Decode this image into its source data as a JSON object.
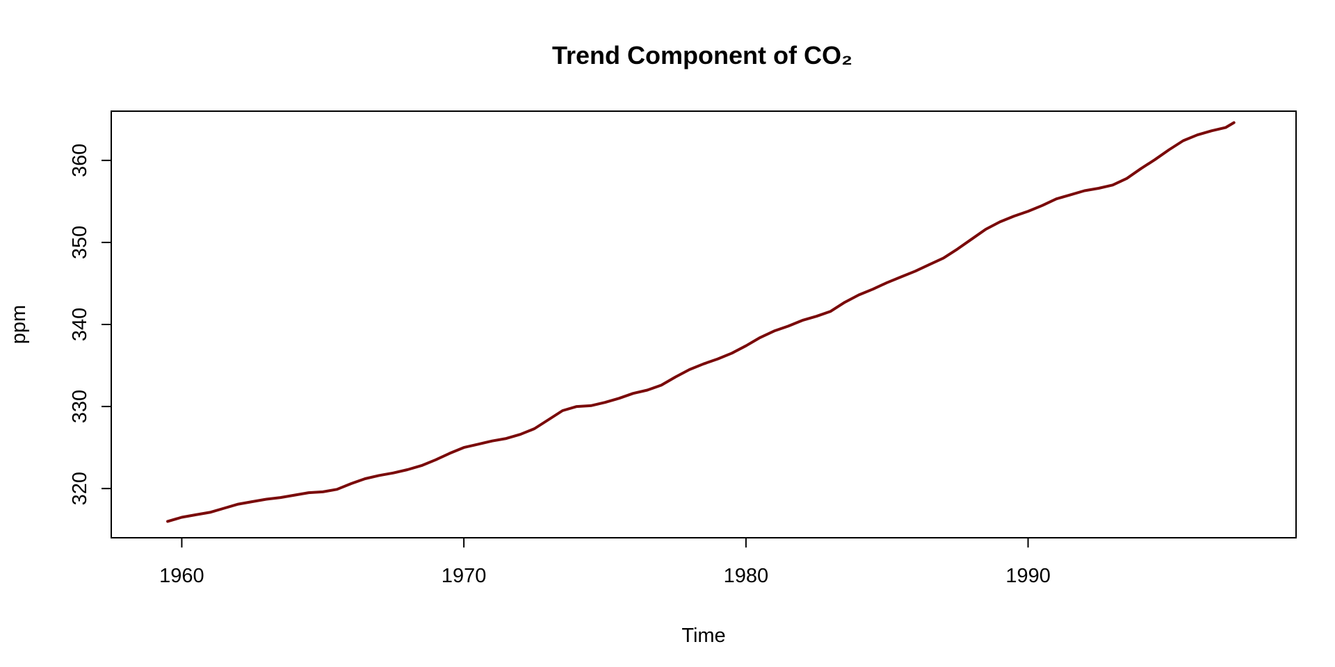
{
  "chart_data": {
    "type": "line",
    "title": "Trend Component of CO₂",
    "xlabel": "Time",
    "ylabel": "ppm",
    "xlim": [
      1957.5,
      1999.5
    ],
    "ylim": [
      314,
      366
    ],
    "xticks": [
      1960,
      1970,
      1980,
      1990
    ],
    "yticks": [
      320,
      330,
      340,
      350,
      360
    ],
    "grid": false,
    "line_color": "#7a0a0a",
    "series": [
      {
        "name": "trend",
        "x": [
          1959.5,
          1960.0,
          1960.5,
          1961.0,
          1961.5,
          1962.0,
          1962.5,
          1963.0,
          1963.5,
          1964.0,
          1964.5,
          1965.0,
          1965.5,
          1966.0,
          1966.5,
          1967.0,
          1967.5,
          1968.0,
          1968.5,
          1969.0,
          1969.5,
          1970.0,
          1970.5,
          1971.0,
          1971.5,
          1972.0,
          1972.5,
          1973.0,
          1973.5,
          1974.0,
          1974.5,
          1975.0,
          1975.5,
          1976.0,
          1976.5,
          1977.0,
          1977.5,
          1978.0,
          1978.5,
          1979.0,
          1979.5,
          1980.0,
          1980.5,
          1981.0,
          1981.5,
          1982.0,
          1982.5,
          1983.0,
          1983.5,
          1984.0,
          1984.5,
          1985.0,
          1985.5,
          1986.0,
          1986.5,
          1987.0,
          1987.5,
          1988.0,
          1988.5,
          1989.0,
          1989.5,
          1990.0,
          1990.5,
          1991.0,
          1991.5,
          1992.0,
          1992.5,
          1993.0,
          1993.5,
          1994.0,
          1994.5,
          1995.0,
          1995.5,
          1996.0,
          1996.5,
          1997.0,
          1997.3
        ],
        "values": [
          316.0,
          316.5,
          316.8,
          317.1,
          317.6,
          318.1,
          318.4,
          318.7,
          318.9,
          319.2,
          319.5,
          319.6,
          319.9,
          320.6,
          321.2,
          321.6,
          321.9,
          322.3,
          322.8,
          323.5,
          324.3,
          325.0,
          325.4,
          325.8,
          326.1,
          326.6,
          327.3,
          328.4,
          329.5,
          330.0,
          330.1,
          330.5,
          331.0,
          331.6,
          332.0,
          332.6,
          333.6,
          334.5,
          335.2,
          335.8,
          336.5,
          337.4,
          338.4,
          339.2,
          339.8,
          340.5,
          341.0,
          341.6,
          342.7,
          343.6,
          344.3,
          345.1,
          345.8,
          346.5,
          347.3,
          348.1,
          349.2,
          350.4,
          351.6,
          352.5,
          353.2,
          353.8,
          354.5,
          355.3,
          355.8,
          356.3,
          356.6,
          357.0,
          357.8,
          359.0,
          360.1,
          361.3,
          362.4,
          363.1,
          363.6,
          364.0,
          364.6
        ]
      }
    ]
  }
}
